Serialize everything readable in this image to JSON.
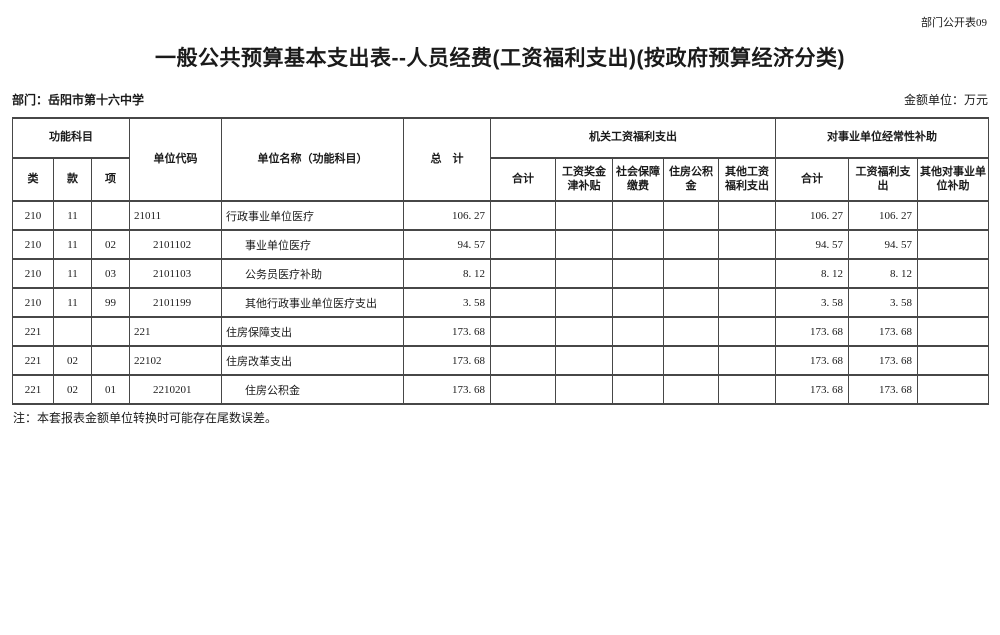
{
  "header": {
    "doc_code": "部门公开表09",
    "title": "一般公共预算基本支出表--人员经费(工资福利支出)(按政府预算经济分类)",
    "department": "部门：岳阳市第十六中学",
    "unit": "金额单位：万元"
  },
  "table": {
    "header": {
      "func_group": "功能科目",
      "col_lei": "类",
      "col_kuan": "款",
      "col_xiang": "项",
      "unit_code": "单位代码",
      "unit_name": "单位名称（功能科目）",
      "total": "总　计",
      "org_group": "机关工资福利支出",
      "org_cols": [
        "合计",
        "工资奖金津补贴",
        "社会保障缴费",
        "住房公积金",
        "其他工资福利支出"
      ],
      "subsidy_group": "对事业单位经常性补助",
      "subsidy_cols": [
        "合计",
        "工资福利支出",
        "其他对事业单位补助"
      ]
    },
    "rows": [
      {
        "lei": "210",
        "kuan": "11",
        "xiang": "",
        "code": "21011",
        "name": "行政事业单位医疗",
        "indent": false,
        "total": "106. 27",
        "org": [
          "",
          "",
          "",
          "",
          ""
        ],
        "sub_total": "106. 27",
        "sub_wage": "106. 27",
        "sub_other": ""
      },
      {
        "lei": "210",
        "kuan": "11",
        "xiang": "02",
        "code": "2101102",
        "name": "事业单位医疗",
        "indent": true,
        "total": "94. 57",
        "org": [
          "",
          "",
          "",
          "",
          ""
        ],
        "sub_total": "94. 57",
        "sub_wage": "94. 57",
        "sub_other": ""
      },
      {
        "lei": "210",
        "kuan": "11",
        "xiang": "03",
        "code": "2101103",
        "name": "公务员医疗补助",
        "indent": true,
        "total": "8. 12",
        "org": [
          "",
          "",
          "",
          "",
          ""
        ],
        "sub_total": "8. 12",
        "sub_wage": "8. 12",
        "sub_other": ""
      },
      {
        "lei": "210",
        "kuan": "11",
        "xiang": "99",
        "code": "2101199",
        "name": "其他行政事业单位医疗支出",
        "indent": true,
        "total": "3. 58",
        "org": [
          "",
          "",
          "",
          "",
          ""
        ],
        "sub_total": "3. 58",
        "sub_wage": "3. 58",
        "sub_other": ""
      },
      {
        "lei": "221",
        "kuan": "",
        "xiang": "",
        "code": "221",
        "name": "住房保障支出",
        "indent": false,
        "total": "173. 68",
        "org": [
          "",
          "",
          "",
          "",
          ""
        ],
        "sub_total": "173. 68",
        "sub_wage": "173. 68",
        "sub_other": ""
      },
      {
        "lei": "221",
        "kuan": "02",
        "xiang": "",
        "code": "22102",
        "name": "住房改革支出",
        "indent": false,
        "total": "173. 68",
        "org": [
          "",
          "",
          "",
          "",
          ""
        ],
        "sub_total": "173. 68",
        "sub_wage": "173. 68",
        "sub_other": ""
      },
      {
        "lei": "221",
        "kuan": "02",
        "xiang": "01",
        "code": "2210201",
        "name": "住房公积金",
        "indent": true,
        "total": "173. 68",
        "org": [
          "",
          "",
          "",
          "",
          ""
        ],
        "sub_total": "173. 68",
        "sub_wage": "173. 68",
        "sub_other": ""
      }
    ]
  },
  "note": "注：本套报表金额单位转换时可能存在尾数误差。"
}
